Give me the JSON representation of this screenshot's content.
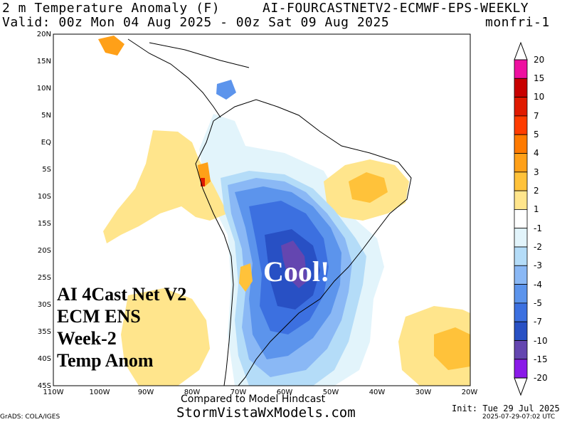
{
  "header": {
    "left_line1": "2 m Temperature Anomaly (F)",
    "right_line1": "AI-FOURCASTNETV2-ECMWF-EPS-WEEKLY",
    "left_line2": "Valid: 00z Mon 04 Aug 2025 - 00z Sat 09 Aug 2025",
    "right_line2": "monfri-1"
  },
  "map": {
    "lat_labels": [
      "20N",
      "15N",
      "10N",
      "5N",
      "EQ",
      "5S",
      "10S",
      "15S",
      "20S",
      "25S",
      "30S",
      "35S",
      "40S",
      "45S"
    ],
    "lon_labels": [
      "110W",
      "100W",
      "90W",
      "80W",
      "70W",
      "60W",
      "50W",
      "40W",
      "30W",
      "20W"
    ]
  },
  "colorbar": {
    "labels": [
      "20",
      "15",
      "10",
      "7",
      "5",
      "4",
      "3",
      "2",
      "1",
      "-1",
      "-2",
      "-3",
      "-4",
      "-5",
      "-7",
      "-10",
      "-15",
      "-20"
    ],
    "colors": [
      "#ee10a0",
      "#c80000",
      "#e01a00",
      "#ff3c00",
      "#ff7a00",
      "#ffa018",
      "#ffc23a",
      "#ffe58c",
      "#ffffff",
      "#e2f4fb",
      "#b4dcf8",
      "#8ab8f5",
      "#5c94ec",
      "#3c70e0",
      "#2850c4",
      "#6446b0",
      "#8a1ae8"
    ]
  },
  "overlay": {
    "lines": [
      "AI 4Cast Net V2",
      "ECM ENS",
      "Week-2",
      "Temp Anom"
    ],
    "cool_label": "Cool!"
  },
  "footer": {
    "compared": "Compared to Model Hindcast",
    "site": "StormVistaWxModels.com",
    "grads": "GrADS: COLA/IGES",
    "init": "Init: Tue 29 Jul 2025",
    "stamp": "2025-07-29-07:02 UTC"
  }
}
